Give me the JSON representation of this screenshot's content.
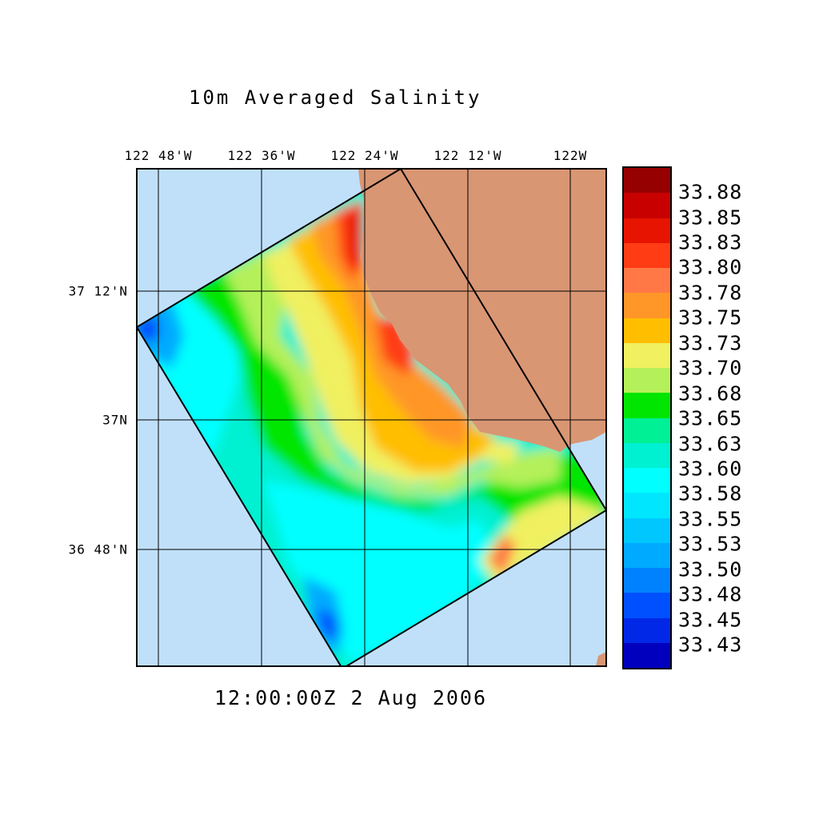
{
  "title": "10m Averaged Salinity",
  "timestamp": "12:00:00Z   2 Aug 2006",
  "longitude_labels": [
    "122 48'W",
    "122 36'W",
    "122 24'W",
    "122 12'W",
    "122W"
  ],
  "latitude_labels": [
    "37 12'N",
    "37N",
    "36 48'N"
  ],
  "colors": {
    "ocean": "#c0e0fa",
    "land": "#d99673",
    "frame": "#000000"
  },
  "colorbar": {
    "labels": [
      "33.88",
      "33.85",
      "33.83",
      "33.80",
      "33.78",
      "33.75",
      "33.73",
      "33.70",
      "33.68",
      "33.65",
      "33.63",
      "33.60",
      "33.58",
      "33.55",
      "33.53",
      "33.50",
      "33.48",
      "33.45",
      "33.43"
    ],
    "colors": [
      "#960000",
      "#c80000",
      "#e61400",
      "#ff3c14",
      "#ff7846",
      "#ff9628",
      "#ffbe00",
      "#f0f060",
      "#b4f05a",
      "#00e600",
      "#00f096",
      "#00f0d2",
      "#00ffff",
      "#00e6ff",
      "#00c8ff",
      "#00aaff",
      "#0082ff",
      "#0050ff",
      "#0028e6",
      "#0000be"
    ]
  }
}
